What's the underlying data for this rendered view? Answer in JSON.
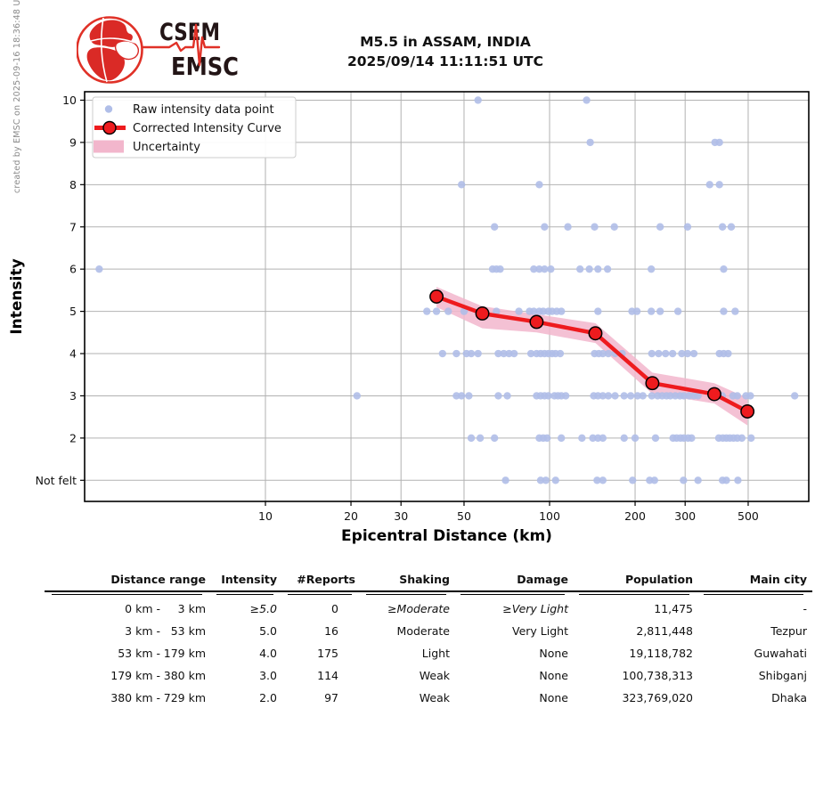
{
  "sidebar": {
    "created_text": "created by EMSC on 2025-09-16 18:36:48 UTC"
  },
  "logo": {
    "top": "CSEM",
    "bottom": "EMSC"
  },
  "header": {
    "title_line1": "M5.5 in ASSAM, INDIA",
    "title_line2": "2025/09/14 11:11:51 UTC"
  },
  "chart_data": {
    "type": "scatter",
    "xlabel": "Epicentral Distance (km)",
    "ylabel": "Intensity",
    "x_scale": "log",
    "xlim": [
      2.31,
      817
    ],
    "ylim": [
      0.5,
      10.2
    ],
    "x_ticks": [
      10,
      20,
      30,
      50,
      100,
      200,
      300,
      500
    ],
    "y_ticks": [
      {
        "value": 1,
        "label": "Not felt"
      },
      {
        "value": 2,
        "label": "2"
      },
      {
        "value": 3,
        "label": "3"
      },
      {
        "value": 4,
        "label": "4"
      },
      {
        "value": 5,
        "label": "5"
      },
      {
        "value": 6,
        "label": "6"
      },
      {
        "value": 7,
        "label": "7"
      },
      {
        "value": 8,
        "label": "8"
      },
      {
        "value": 9,
        "label": "9"
      },
      {
        "value": 10,
        "label": "10"
      }
    ],
    "grid": true,
    "legend": {
      "position": "upper left",
      "entries": [
        {
          "type": "dot",
          "label": "Raw intensity data point"
        },
        {
          "type": "line-marker",
          "label": "Corrected Intensity Curve"
        },
        {
          "type": "patch",
          "label": "Uncertainty"
        }
      ]
    },
    "colors": {
      "raw_point": "#B0BEE8",
      "curve": "#EE1B1E",
      "band": "#F2B6CC",
      "grid": "#B2B2B2",
      "spine": "#000000"
    },
    "series": [
      {
        "name": "Raw intensity data point",
        "type": "scatter",
        "points": [
          [
            56,
            10
          ],
          [
            135,
            10
          ],
          [
            139,
            9
          ],
          [
            382,
            9
          ],
          [
            396,
            9
          ],
          [
            49,
            8
          ],
          [
            92,
            8
          ],
          [
            366,
            8
          ],
          [
            396,
            8
          ],
          [
            64,
            7
          ],
          [
            96,
            7
          ],
          [
            116,
            7
          ],
          [
            144,
            7
          ],
          [
            169,
            7
          ],
          [
            245,
            7
          ],
          [
            306,
            7
          ],
          [
            406,
            7
          ],
          [
            436,
            7
          ],
          [
            2.6,
            6
          ],
          [
            63,
            6
          ],
          [
            65,
            6
          ],
          [
            67,
            6
          ],
          [
            88,
            6
          ],
          [
            92,
            6
          ],
          [
            96,
            6
          ],
          [
            101,
            6
          ],
          [
            128,
            6
          ],
          [
            138,
            6
          ],
          [
            148,
            6
          ],
          [
            160,
            6
          ],
          [
            228,
            6
          ],
          [
            410,
            6
          ],
          [
            37,
            5
          ],
          [
            40,
            5
          ],
          [
            44,
            5
          ],
          [
            50,
            5
          ],
          [
            65,
            5
          ],
          [
            78,
            5
          ],
          [
            85,
            5
          ],
          [
            88,
            5
          ],
          [
            92,
            5
          ],
          [
            95,
            5
          ],
          [
            99,
            5
          ],
          [
            102,
            5
          ],
          [
            106,
            5
          ],
          [
            110,
            5
          ],
          [
            148,
            5
          ],
          [
            195,
            5
          ],
          [
            203,
            5
          ],
          [
            228,
            5
          ],
          [
            245,
            5
          ],
          [
            283,
            5
          ],
          [
            410,
            5
          ],
          [
            450,
            5
          ],
          [
            42,
            4
          ],
          [
            47,
            4
          ],
          [
            51,
            4
          ],
          [
            53,
            4
          ],
          [
            56,
            4
          ],
          [
            66,
            4
          ],
          [
            69,
            4
          ],
          [
            72,
            4
          ],
          [
            75,
            4
          ],
          [
            86,
            4
          ],
          [
            90,
            4
          ],
          [
            93,
            4
          ],
          [
            96,
            4
          ],
          [
            99,
            4
          ],
          [
            102,
            4
          ],
          [
            105,
            4
          ],
          [
            109,
            4
          ],
          [
            144,
            4
          ],
          [
            149,
            4
          ],
          [
            154,
            4
          ],
          [
            161,
            4
          ],
          [
            170,
            4
          ],
          [
            180,
            4
          ],
          [
            229,
            4
          ],
          [
            242,
            4
          ],
          [
            256,
            4
          ],
          [
            271,
            4
          ],
          [
            292,
            4
          ],
          [
            306,
            4
          ],
          [
            322,
            4
          ],
          [
            396,
            4
          ],
          [
            410,
            4
          ],
          [
            425,
            4
          ],
          [
            21,
            3
          ],
          [
            47,
            3
          ],
          [
            49,
            3
          ],
          [
            52,
            3
          ],
          [
            66,
            3
          ],
          [
            71,
            3
          ],
          [
            90,
            3
          ],
          [
            93,
            3
          ],
          [
            96,
            3
          ],
          [
            99,
            3
          ],
          [
            104,
            3
          ],
          [
            107,
            3
          ],
          [
            110,
            3
          ],
          [
            114,
            3
          ],
          [
            143,
            3
          ],
          [
            148,
            3
          ],
          [
            154,
            3
          ],
          [
            161,
            3
          ],
          [
            170,
            3
          ],
          [
            183,
            3
          ],
          [
            193,
            3
          ],
          [
            204,
            3
          ],
          [
            213,
            3
          ],
          [
            229,
            3
          ],
          [
            240,
            3
          ],
          [
            249,
            3
          ],
          [
            258,
            3
          ],
          [
            266,
            3
          ],
          [
            277,
            3
          ],
          [
            288,
            3
          ],
          [
            297,
            3
          ],
          [
            310,
            3
          ],
          [
            322,
            3
          ],
          [
            333,
            3
          ],
          [
            389,
            3
          ],
          [
            405,
            3
          ],
          [
            442,
            3
          ],
          [
            458,
            3
          ],
          [
            491,
            3
          ],
          [
            509,
            3
          ],
          [
            729,
            3
          ],
          [
            53,
            2
          ],
          [
            57,
            2
          ],
          [
            64,
            2
          ],
          [
            92,
            2
          ],
          [
            95,
            2
          ],
          [
            98,
            2
          ],
          [
            110,
            2
          ],
          [
            130,
            2
          ],
          [
            142,
            2
          ],
          [
            148,
            2
          ],
          [
            154,
            2
          ],
          [
            183,
            2
          ],
          [
            200,
            2
          ],
          [
            236,
            2
          ],
          [
            272,
            2
          ],
          [
            280,
            2
          ],
          [
            289,
            2
          ],
          [
            297,
            2
          ],
          [
            307,
            2
          ],
          [
            316,
            2
          ],
          [
            394,
            2
          ],
          [
            407,
            2
          ],
          [
            419,
            2
          ],
          [
            431,
            2
          ],
          [
            444,
            2
          ],
          [
            458,
            2
          ],
          [
            475,
            2
          ],
          [
            512,
            2
          ],
          [
            70,
            1
          ],
          [
            93,
            1
          ],
          [
            97,
            1
          ],
          [
            105,
            1
          ],
          [
            147,
            1
          ],
          [
            154,
            1
          ],
          [
            196,
            1
          ],
          [
            225,
            1
          ],
          [
            234,
            1
          ],
          [
            296,
            1
          ],
          [
            333,
            1
          ],
          [
            406,
            1
          ],
          [
            419,
            1
          ],
          [
            460,
            1
          ]
        ]
      },
      {
        "name": "Corrected Intensity Curve",
        "type": "line",
        "points": [
          [
            40,
            5.35
          ],
          [
            58,
            4.95
          ],
          [
            90,
            4.75
          ],
          [
            145,
            4.48
          ],
          [
            230,
            3.3
          ],
          [
            380,
            3.04
          ],
          [
            497,
            2.63
          ]
        ]
      },
      {
        "name": "Uncertainty",
        "type": "band",
        "upper": [
          [
            40,
            5.58
          ],
          [
            58,
            5.12
          ],
          [
            90,
            4.93
          ],
          [
            145,
            4.72
          ],
          [
            230,
            3.55
          ],
          [
            380,
            3.3
          ],
          [
            497,
            2.95
          ]
        ],
        "lower": [
          [
            40,
            5.1
          ],
          [
            58,
            4.6
          ],
          [
            90,
            4.5
          ],
          [
            145,
            4.25
          ],
          [
            230,
            3.05
          ],
          [
            380,
            2.82
          ],
          [
            497,
            2.3
          ]
        ]
      }
    ]
  },
  "table": {
    "headers": [
      "Distance range",
      "Intensity",
      "#Reports",
      "Shaking",
      "Damage",
      "Population",
      "Main city"
    ],
    "rows": [
      {
        "dist_from": "0 km -",
        "dist_to": "3 km",
        "intensity": "≥5.0",
        "reports": "0",
        "shaking": "≥Moderate",
        "damage": "≥Very Light",
        "population": "11,475",
        "city": "-",
        "emphasis": true
      },
      {
        "dist_from": "3 km -",
        "dist_to": "53 km",
        "intensity": "5.0",
        "reports": "16",
        "shaking": "Moderate",
        "damage": "Very Light",
        "population": "2,811,448",
        "city": "Tezpur",
        "emphasis": false
      },
      {
        "dist_from": "53 km -",
        "dist_to": "179 km",
        "intensity": "4.0",
        "reports": "175",
        "shaking": "Light",
        "damage": "None",
        "population": "19,118,782",
        "city": "Guwahati",
        "emphasis": false
      },
      {
        "dist_from": "179 km -",
        "dist_to": "380 km",
        "intensity": "3.0",
        "reports": "114",
        "shaking": "Weak",
        "damage": "None",
        "population": "100,738,313",
        "city": "Shibganj",
        "emphasis": false
      },
      {
        "dist_from": "380 km -",
        "dist_to": "729 km",
        "intensity": "2.0",
        "reports": "97",
        "shaking": "Weak",
        "damage": "None",
        "population": "323,769,020",
        "city": "Dhaka",
        "emphasis": false
      }
    ]
  }
}
